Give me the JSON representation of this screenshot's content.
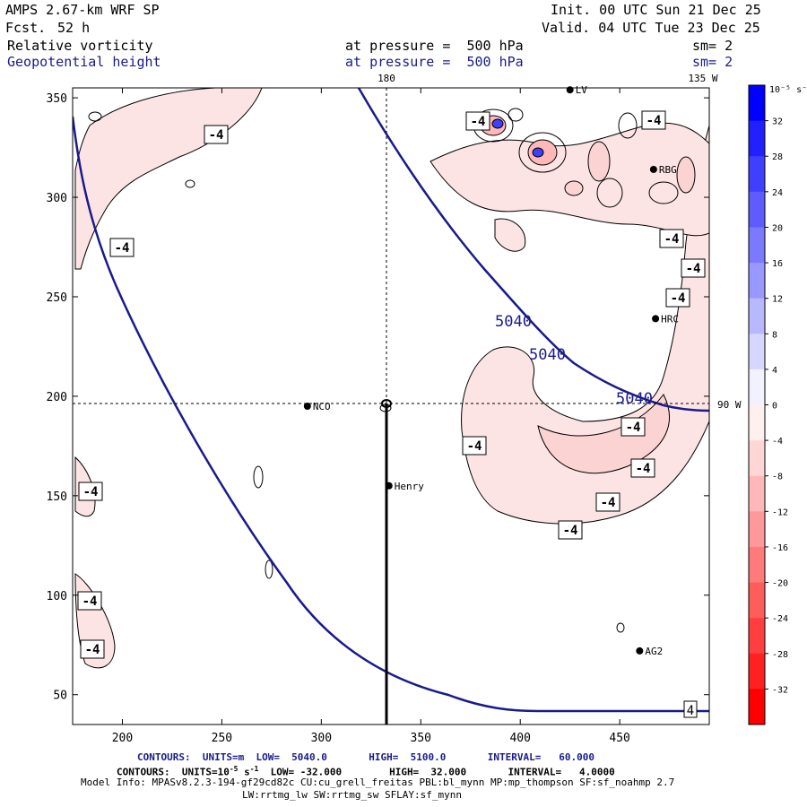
{
  "header": {
    "model": "AMPS 2.67-km WRF SP",
    "fcst_label": "Fcst.",
    "fcst_hours": "52 h",
    "init": "Init. 00 UTC Sun 21 Dec 25",
    "valid": "Valid. 04 UTC Tue 23 Dec 25",
    "field1_name": "Relative vorticity",
    "field1_level": "at pressure =  500 hPa",
    "field1_smooth": "sm= 2",
    "field2_name": "Geopotential height",
    "field2_level": "at pressure =  500 hPa",
    "field2_smooth": "sm= 2"
  },
  "map": {
    "meridian_label_180": "180",
    "meridian_label_135w": "135 W",
    "meridian_label_90w": "90 W",
    "x_ticks": [
      200,
      250,
      300,
      350,
      400,
      450
    ],
    "y_ticks": [
      50,
      100,
      150,
      200,
      250,
      300,
      350
    ],
    "xlim": [
      175,
      495
    ],
    "ylim": [
      35,
      355
    ],
    "stations": [
      {
        "name": "NCO",
        "x": 293,
        "y": 195
      },
      {
        "name": "Henry",
        "x": 334,
        "y": 155
      },
      {
        "name": "RBG",
        "x": 467,
        "y": 314
      },
      {
        "name": "HRC",
        "x": 468,
        "y": 239
      },
      {
        "name": "AG2",
        "x": 460,
        "y": 72
      },
      {
        "name": "LV",
        "x": 425,
        "y": 354
      }
    ],
    "height_label": "5040",
    "vort_label": "-4"
  },
  "colorbar": {
    "unit_label": "10⁻⁵ s⁻¹",
    "ticks": [
      "32",
      "28",
      "24",
      "20",
      "16",
      "12",
      "8",
      "4",
      "0",
      "-4",
      "-8",
      "-12",
      "-16",
      "-20",
      "-24",
      "-28",
      "-32"
    ],
    "colors": [
      "#0000ff",
      "#2121ff",
      "#3f3fff",
      "#5c5cff",
      "#7a7aff",
      "#9898ff",
      "#b8b8ff",
      "#d6d6ff",
      "#f2f2ff",
      "#fff0f0",
      "#ffd6d6",
      "#ffb8b8",
      "#ff9898",
      "#ff7a7a",
      "#ff5c5c",
      "#ff3f3f",
      "#ff2121",
      "#ff0000"
    ]
  },
  "footer": {
    "contours1": "CONTOURS:  UNITS=m  LOW=  5040.0       HIGH=  5100.0       INTERVAL=   60.000",
    "contours2_pre": "CONTOURS:  UNITS=10",
    "contours2_exp": "-5",
    "contours2_mid": " s",
    "contours2_exp2": "-1",
    "contours2_post": "  LOW= -32.000        HIGH=  32.000       INTERVAL=   4.0000",
    "model_info": "Model Info: MPASv8.2.3-194-gf29cd82c CU:cu_grell_freitas PBL:bl_mynn MP:mp_thompson SF:sf_noahmp 2.7",
    "physics": "LW:rrtmg_lw SW:rrtmg_sw SFLAY:sf_mynn"
  },
  "chart_data": {
    "type": "contour-map",
    "title": "Relative vorticity / Geopotential height at 500 hPa",
    "fields": [
      {
        "name": "Geopotential height",
        "units": "m",
        "low": 5040.0,
        "high": 5100.0,
        "interval": 60.0
      },
      {
        "name": "Relative vorticity",
        "units": "10^-5 s^-1",
        "low": -32.0,
        "high": 32.0,
        "interval": 4.0
      }
    ],
    "xlim": [
      175,
      495
    ],
    "ylim": [
      35,
      355
    ]
  }
}
